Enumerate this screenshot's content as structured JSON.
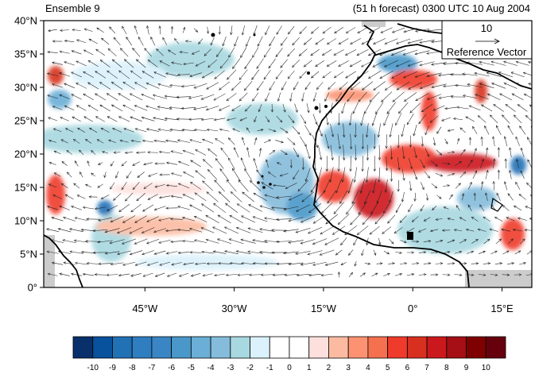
{
  "title_left": "Ensemble 9",
  "title_right": "(51 h forecast) 0300 UTC 10 Aug 2004",
  "map": {
    "lat_labels": [
      "40°N",
      "35°N",
      "30°N",
      "25°N",
      "20°N",
      "15°N",
      "10°N",
      "5°N",
      "0°"
    ],
    "lon_labels": [
      "45°W",
      "30°W",
      "15°W",
      "0°",
      "15°E"
    ],
    "lat_values": [
      40,
      35,
      30,
      25,
      20,
      15,
      10,
      5,
      0
    ],
    "lon_values": [
      -45,
      -30,
      -15,
      0,
      15
    ],
    "lon_range": [
      -62,
      20
    ],
    "lat_range": [
      0,
      40
    ],
    "land_color": "#cccccc",
    "coast_color": "#000000"
  },
  "reference_vector": {
    "magnitude": "10",
    "label": "Reference Vector"
  },
  "colorbar": {
    "labels": [
      "-10",
      "-9",
      "-8",
      "-7",
      "-6",
      "-5",
      "-4",
      "-3",
      "-2",
      "-1",
      "0",
      "1",
      "2",
      "3",
      "4",
      "5",
      "6",
      "7",
      "8",
      "9",
      "10"
    ],
    "colors": [
      "#08306b",
      "#08519c",
      "#2171b5",
      "#2f7ec0",
      "#3a86c4",
      "#4a98c9",
      "#6baed6",
      "#85bcdb",
      "#a8d8e0",
      "#dbf1fb",
      "#ffffff",
      "#ffffff",
      "#fde0dd",
      "#fcbba1",
      "#fc9272",
      "#f4704f",
      "#ef3b2c",
      "#d7301f",
      "#cb181d",
      "#a50f15",
      "#7f0000",
      "#67000d"
    ]
  }
}
